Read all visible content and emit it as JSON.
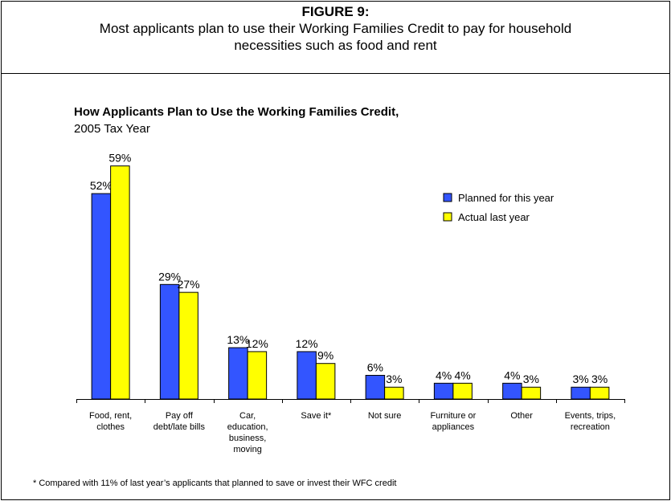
{
  "header": {
    "figure_label": "FIGURE 9:",
    "caption": "Most applicants plan to use their Working Families Credit to pay for household necessities such as food and rent"
  },
  "footnote": "* Compared with 11% of last year’s applicants that planned to save or invest their WFC credit",
  "colors": {
    "planned": "#3355ff",
    "actual": "#ffff00",
    "outline": "#000000"
  },
  "chart_data": {
    "type": "bar",
    "title": "How Applicants Plan to Use the Working Families Credit,",
    "subtitle": "2005 Tax Year",
    "xlabel": "",
    "ylabel": "",
    "ylim": [
      0,
      63
    ],
    "grid": false,
    "legend_position": "upper-right",
    "categories": [
      [
        "Food, rent,",
        "clothes"
      ],
      [
        "Pay off",
        "debt/late bills"
      ],
      [
        "Car,",
        "education,",
        "business,",
        "moving"
      ],
      [
        "Save it*"
      ],
      [
        "Not sure"
      ],
      [
        "Furniture or",
        "appliances"
      ],
      [
        "Other"
      ],
      [
        "Events, trips,",
        "recreation"
      ]
    ],
    "series": [
      {
        "name": "Planned for this year",
        "values": [
          52,
          29,
          13,
          12,
          6,
          4,
          4,
          3
        ],
        "labels": [
          "52%",
          "29%",
          "13%",
          "12%",
          "6%",
          "4%",
          "4%",
          "3%"
        ]
      },
      {
        "name": "Actual last year",
        "values": [
          59,
          27,
          12,
          9,
          3,
          4,
          3,
          3
        ],
        "labels": [
          "59%",
          "27%",
          "12%",
          "9%",
          "3%",
          "4%",
          "3%",
          "3%"
        ]
      }
    ]
  }
}
